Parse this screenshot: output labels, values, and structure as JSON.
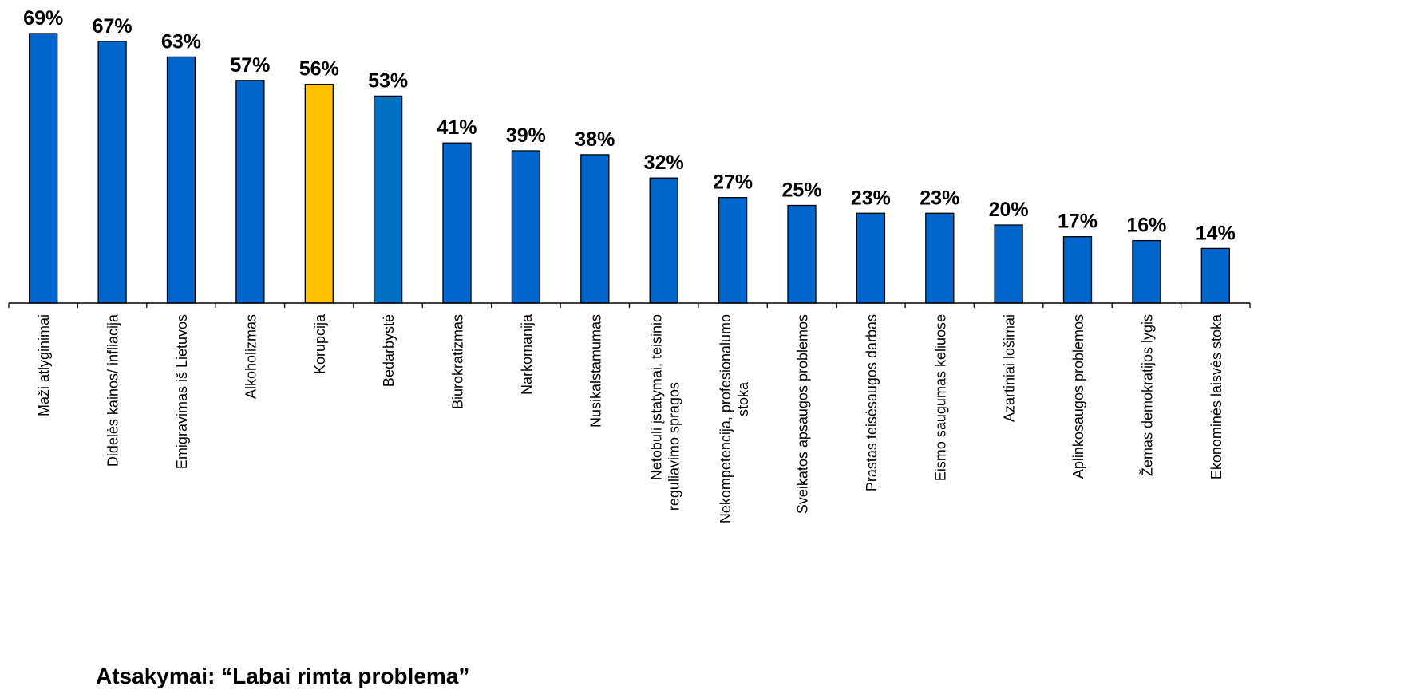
{
  "chart_data": {
    "type": "bar",
    "unit": "%",
    "categories": [
      "Maži atlyginimai",
      "Didelės kainos/ infliacija",
      "Emigravimas iš Lietuvos",
      "Alkoholizmas",
      "Korupcija",
      "Bedarbystė",
      "Biurokratizmas",
      "Narkomanija",
      "Nusikalstamumas",
      "Netobuli įstatymai, teisinio reguliavimo spragos",
      "Nekompetencija, profesionalumo stoka",
      "Sveikatos apsaugos problemos",
      "Prastas teisėsaugos darbas",
      "Eismo saugumas keliuose",
      "Azartiniai lošimai",
      "Aplinkosaugos problemos",
      "Žemas demokratijos lygis",
      "Ekonominės laisvės stoka"
    ],
    "values": [
      69,
      67,
      63,
      57,
      56,
      53,
      41,
      39,
      38,
      32,
      27,
      25,
      23,
      23,
      20,
      17,
      16,
      14
    ],
    "value_labels": [
      "69%",
      "67%",
      "63%",
      "57%",
      "56%",
      "53%",
      "41%",
      "39%",
      "38%",
      "32%",
      "27%",
      "25%",
      "23%",
      "23%",
      "20%",
      "17%",
      "16%",
      "14%"
    ],
    "bar_colors": [
      "#0066CC",
      "#0066CC",
      "#0066CC",
      "#0066CC",
      "#FFC000",
      "#0070C0",
      "#0066CC",
      "#0066CC",
      "#0066CC",
      "#0066CC",
      "#0066CC",
      "#0066CC",
      "#0066CC",
      "#0066CC",
      "#0066CC",
      "#0066CC",
      "#0066CC",
      "#0066CC"
    ],
    "ylim": [
      0,
      69
    ],
    "grid": false,
    "legend": "none",
    "annotation": "Atsakymai: “Labai rimta problema”"
  }
}
